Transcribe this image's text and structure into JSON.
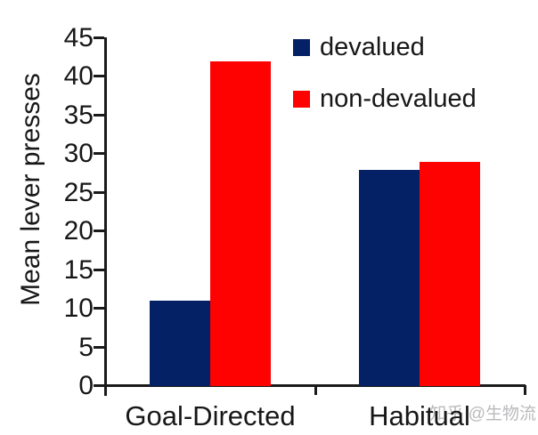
{
  "chart_data": {
    "type": "bar",
    "title": "",
    "xlabel": "",
    "ylabel": "Mean lever presses",
    "categories": [
      "Goal-Directed",
      "Habitual"
    ],
    "series": [
      {
        "name": "devalued",
        "color": "#052165",
        "values": [
          11,
          28
        ]
      },
      {
        "name": "non-devalued",
        "color": "#fe0202",
        "values": [
          42,
          29
        ]
      }
    ],
    "ylim": [
      0,
      45
    ],
    "yticks": [
      0,
      5,
      10,
      15,
      20,
      25,
      30,
      35,
      40,
      45
    ],
    "grid": false,
    "legend_position": "top-right"
  },
  "watermark": {
    "text": "知乎 @生物流"
  }
}
